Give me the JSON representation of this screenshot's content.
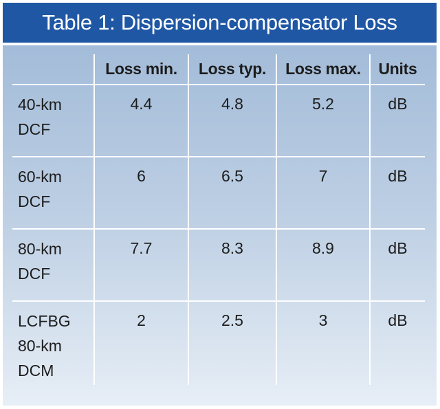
{
  "chart_data": {
    "type": "table",
    "title": "Table 1: Dispersion-compensator Loss",
    "columns": [
      "",
      "Loss min.",
      "Loss typ.",
      "Loss max.",
      "Units"
    ],
    "rows": [
      {
        "label_lines": [
          "40-km",
          "DCF"
        ],
        "values": [
          "4.4",
          "4.8",
          "5.2"
        ],
        "unit": "dB"
      },
      {
        "label_lines": [
          "60-km",
          "DCF"
        ],
        "values": [
          "6",
          "6.5",
          "7"
        ],
        "unit": "dB"
      },
      {
        "label_lines": [
          "80-km",
          "DCF"
        ],
        "values": [
          "7.7",
          "8.3",
          "8.9"
        ],
        "unit": "dB"
      },
      {
        "label_lines": [
          "LCFBG",
          "80-km",
          "DCM"
        ],
        "values": [
          "2",
          "2.5",
          "3"
        ],
        "unit": "dB"
      }
    ]
  },
  "colors": {
    "title_bar": "#1f57a4",
    "title_text": "#ffffff",
    "panel_top": "#a3bcd9",
    "panel_bottom": "#e7eef6",
    "grid_lines": "#ffffff",
    "body_text": "#1d1d1d"
  }
}
